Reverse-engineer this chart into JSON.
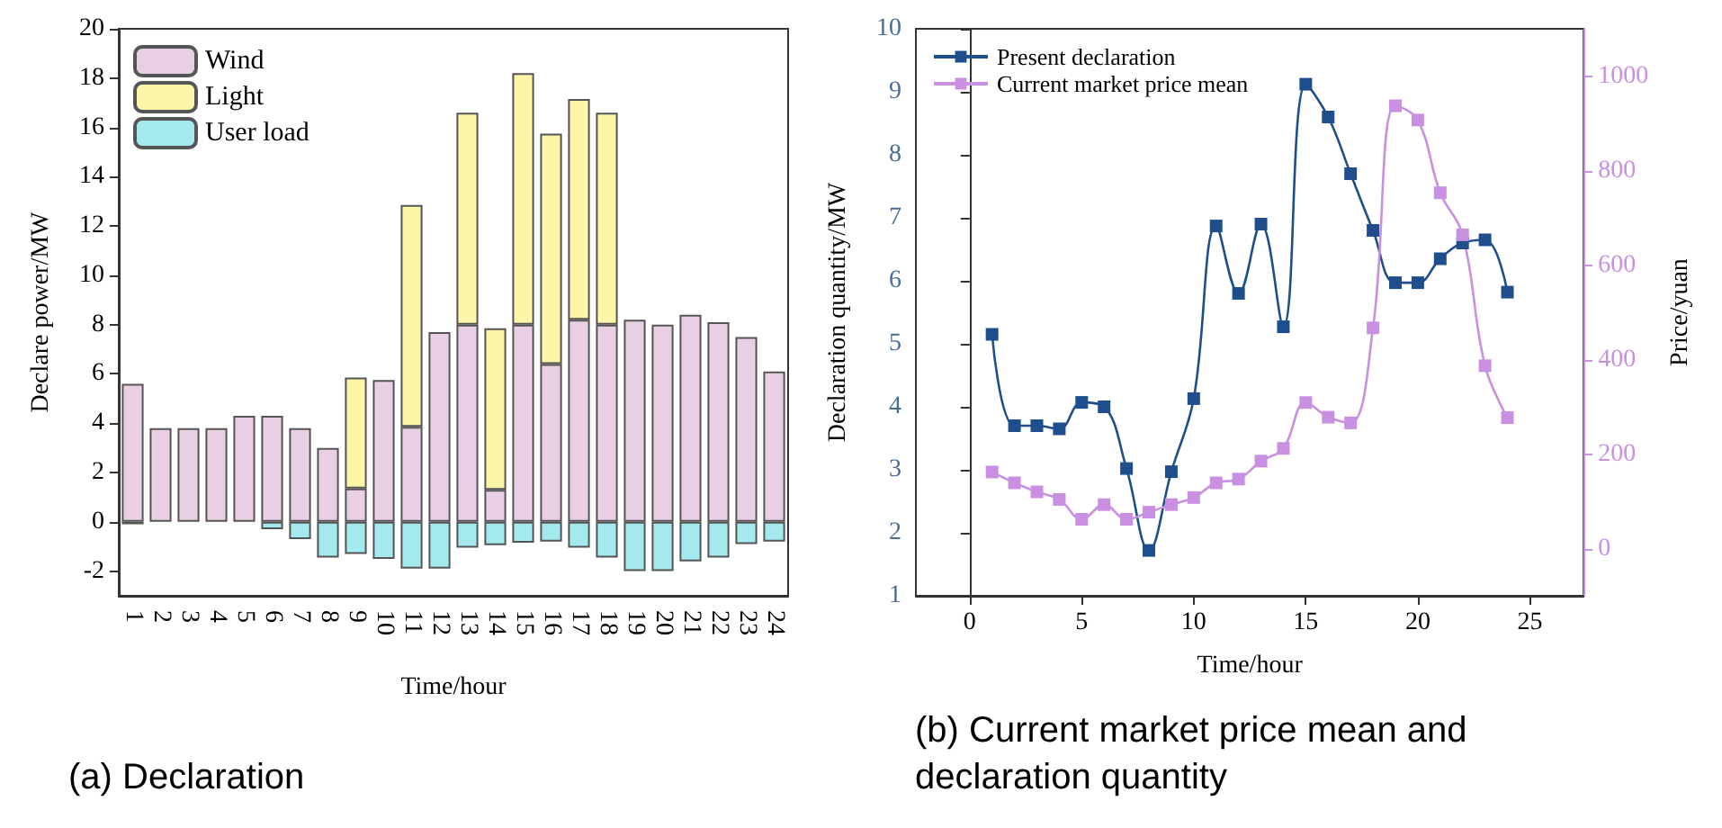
{
  "chart_data": [
    {
      "type": "bar",
      "title": "(a) Declaration",
      "xlabel": "Time/hour",
      "ylabel": "Declare power/MW",
      "categories": [
        "1",
        "2",
        "3",
        "4",
        "5",
        "6",
        "7",
        "8",
        "9",
        "10",
        "11",
        "12",
        "13",
        "14",
        "15",
        "16",
        "17",
        "18",
        "19",
        "20",
        "21",
        "22",
        "23",
        "24"
      ],
      "stacked": true,
      "legend": "top left",
      "ylim": [
        -3,
        20
      ],
      "yticks": [
        -2,
        0,
        2,
        4,
        6,
        8,
        10,
        12,
        14,
        16,
        18,
        20
      ],
      "series": [
        {
          "name": "Wind",
          "color": "#e8cfe3",
          "values": [
            5.6,
            3.8,
            3.8,
            3.8,
            4.3,
            4.3,
            3.8,
            3.0,
            1.35,
            5.75,
            3.85,
            7.7,
            8.0,
            1.3,
            8.0,
            6.4,
            8.2,
            8.0,
            8.2,
            8.0,
            8.4,
            8.1,
            7.5,
            6.1
          ]
        },
        {
          "name": "Light",
          "color": "#fdf5a8",
          "values": [
            null,
            null,
            null,
            null,
            null,
            null,
            null,
            null,
            4.5,
            null,
            9.0,
            null,
            8.6,
            6.55,
            10.2,
            9.35,
            8.95,
            8.6,
            null,
            null,
            null,
            null,
            null,
            null
          ]
        },
        {
          "name": "User load",
          "color": "#a3e9ee",
          "values": [
            -0.1,
            null,
            null,
            null,
            null,
            -0.3,
            -0.7,
            -1.45,
            -1.3,
            -1.5,
            -1.9,
            -1.9,
            -1.05,
            -0.95,
            -0.85,
            -0.8,
            -1.05,
            -1.45,
            -2.0,
            -2.0,
            -1.6,
            -1.45,
            -0.9,
            -0.8
          ]
        }
      ]
    },
    {
      "type": "line",
      "title": "(b) Current market price mean and declaration quantity",
      "xlabel": "Time/hour",
      "ylabel": "Declaration quantity/MW",
      "y2label": "Price/yuan",
      "x": [
        1,
        2,
        3,
        4,
        5,
        6,
        7,
        8,
        9,
        10,
        11,
        12,
        13,
        14,
        15,
        16,
        17,
        18,
        19,
        20,
        21,
        22,
        23,
        24
      ],
      "xlim": [
        -2.4,
        27.4
      ],
      "xticks": [
        0,
        5,
        10,
        15,
        20,
        25
      ],
      "ylim": [
        1,
        10
      ],
      "yticks": [
        1,
        2,
        3,
        4,
        5,
        6,
        7,
        8,
        9,
        10
      ],
      "y2lim": [
        -100,
        1100
      ],
      "y2ticks": [
        0,
        200,
        400,
        600,
        800,
        1000
      ],
      "legend": "top left",
      "marker": "square",
      "series": [
        {
          "name": "Present declaration",
          "color": "#1f4e8c",
          "values": [
            5.15,
            3.7,
            3.7,
            3.65,
            4.07,
            4.0,
            3.02,
            1.72,
            2.97,
            4.13,
            6.87,
            5.8,
            6.9,
            5.27,
            9.12,
            8.6,
            7.7,
            6.8,
            5.97,
            5.97,
            6.35,
            6.6,
            6.65,
            5.82
          ]
        },
        {
          "name": "Current market price mean",
          "color": "#c98fe0",
          "axis": "y2",
          "values": [
            162,
            139,
            120,
            104,
            62,
            93,
            62,
            77,
            93,
            108,
            139,
            147,
            185,
            212,
            309,
            278,
            266,
            467,
            937,
            907,
            753,
            664,
            387,
            277
          ]
        }
      ]
    }
  ]
}
